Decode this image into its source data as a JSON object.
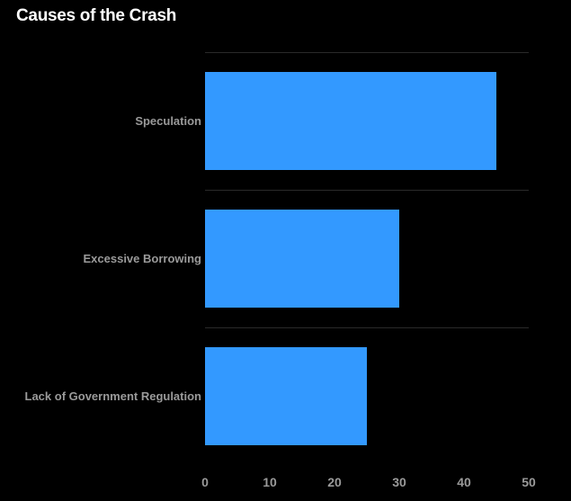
{
  "chart_data": {
    "type": "bar",
    "orientation": "horizontal",
    "title": "Causes of the Crash",
    "categories": [
      "Speculation",
      "Excessive Borrowing",
      "Lack of Government Regulation"
    ],
    "values": [
      45,
      30,
      25
    ],
    "xlim": [
      0,
      50
    ],
    "xticks": [
      0,
      10,
      20,
      30,
      40,
      50
    ],
    "xlabel": "",
    "ylabel": "",
    "grid": true,
    "colors": {
      "bar": "#3399ff",
      "background": "#000000",
      "text": "#9a9a9a",
      "title": "#ffffff",
      "grid": "#2a2a2a"
    }
  }
}
